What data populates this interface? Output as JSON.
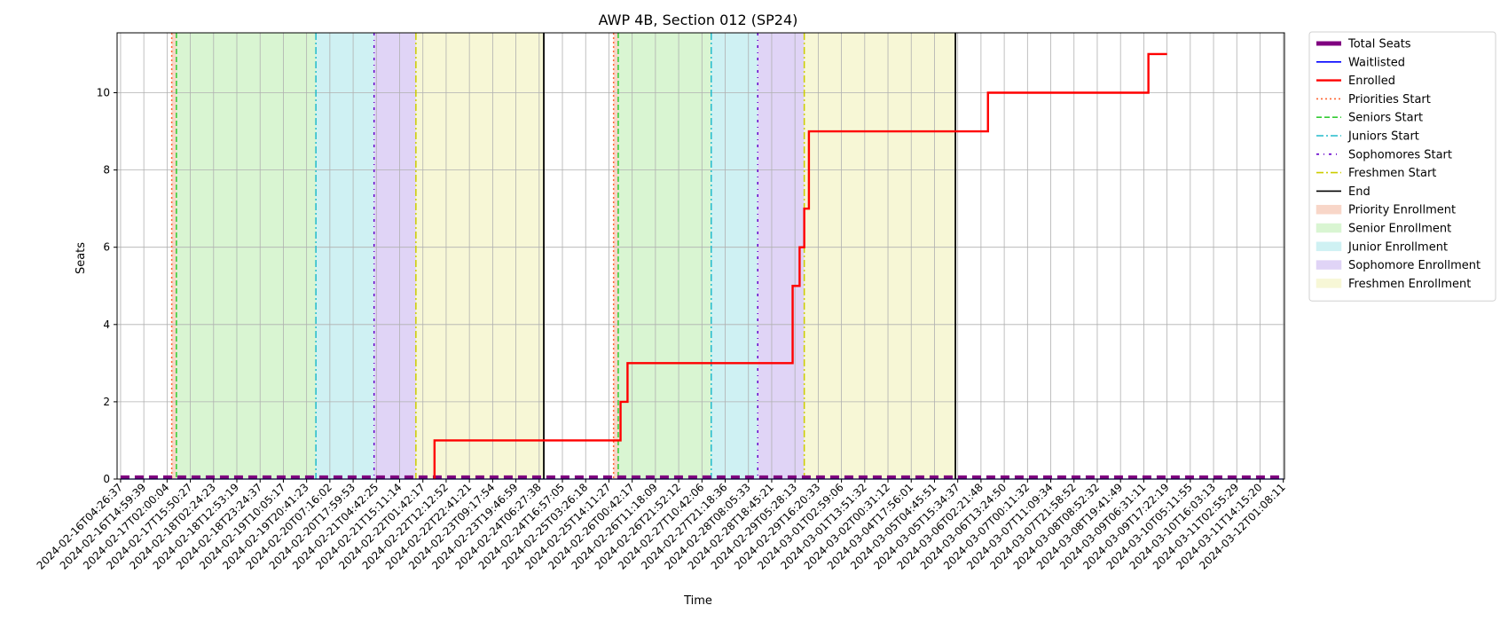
{
  "chart_data": {
    "type": "line",
    "title": "AWP 4B, Section 012 (SP24)",
    "xlabel": "Time",
    "ylabel": "Seats",
    "ylim": [
      0,
      11.55
    ],
    "yticks": [
      0,
      2,
      4,
      6,
      8,
      10
    ],
    "grid": true,
    "legend_position": "outside right, top",
    "x_tick_labels": [
      "2024-02-16T04:26:37",
      "2024-02-16T14:59:39",
      "2024-02-17T02:00:04",
      "2024-02-17T15:50:27",
      "2024-02-18T02:24:23",
      "2024-02-18T12:53:19",
      "2024-02-18T23:24:37",
      "2024-02-19T10:05:17",
      "2024-02-19T20:41:23",
      "2024-02-20T07:16:02",
      "2024-02-20T17:59:53",
      "2024-02-21T04:42:25",
      "2024-02-21T15:11:14",
      "2024-02-22T01:42:17",
      "2024-02-22T12:12:52",
      "2024-02-22T22:41:21",
      "2024-02-23T09:17:54",
      "2024-02-23T19:46:59",
      "2024-02-24T06:27:38",
      "2024-02-24T16:57:05",
      "2024-02-25T03:26:18",
      "2024-02-25T14:11:27",
      "2024-02-26T00:42:17",
      "2024-02-26T11:18:09",
      "2024-02-26T21:52:12",
      "2024-02-27T10:42:06",
      "2024-02-27T21:18:36",
      "2024-02-28T08:05:33",
      "2024-02-28T18:45:21",
      "2024-02-29T05:28:13",
      "2024-02-29T16:20:33",
      "2024-03-01T02:59:06",
      "2024-03-01T13:51:32",
      "2024-03-02T00:31:12",
      "2024-03-04T17:56:01",
      "2024-03-05T04:45:51",
      "2024-03-05T15:34:37",
      "2024-03-06T02:21:48",
      "2024-03-06T13:24:50",
      "2024-03-07T00:11:32",
      "2024-03-07T11:09:34",
      "2024-03-07T21:58:52",
      "2024-03-08T08:52:32",
      "2024-03-08T19:41:49",
      "2024-03-09T06:31:11",
      "2024-03-09T17:22:19",
      "2024-03-10T05:11:55",
      "2024-03-10T16:03:13",
      "2024-03-11T02:55:29",
      "2024-03-11T14:15:20",
      "2024-03-12T01:08:11"
    ],
    "series": [
      {
        "name": "Total Seats",
        "color": "#800080",
        "style": "dashed-thick",
        "points": [
          [
            0,
            0.05
          ],
          [
            50,
            0.05
          ]
        ]
      },
      {
        "name": "Waitlisted",
        "color": "#0000ff",
        "style": "solid-thin",
        "points": [
          [
            0,
            0
          ],
          [
            50,
            0
          ]
        ]
      },
      {
        "name": "Enrolled",
        "color": "#ff0000",
        "style": "solid-thick",
        "points": [
          [
            13.5,
            0
          ],
          [
            13.5,
            1
          ],
          [
            21.5,
            1
          ],
          [
            21.5,
            2
          ],
          [
            21.8,
            2
          ],
          [
            21.8,
            3
          ],
          [
            28.9,
            3
          ],
          [
            28.9,
            5
          ],
          [
            29.2,
            5
          ],
          [
            29.2,
            6
          ],
          [
            29.4,
            6
          ],
          [
            29.4,
            7
          ],
          [
            29.6,
            7
          ],
          [
            29.6,
            9
          ],
          [
            37.3,
            9
          ],
          [
            37.3,
            10
          ],
          [
            44.2,
            10
          ],
          [
            44.2,
            11
          ],
          [
            45.0,
            11
          ]
        ]
      }
    ],
    "vertical_lines": [
      {
        "name": "Priorities Start",
        "color": "#ff6633",
        "style": "dotted",
        "x": [
          2.2,
          21.2
        ]
      },
      {
        "name": "Seniors Start",
        "color": "#33cc33",
        "style": "dashed",
        "x": [
          2.4,
          21.4
        ]
      },
      {
        "name": "Juniors Start",
        "color": "#22bbcc",
        "style": "dashdot",
        "x": [
          8.4,
          25.4
        ]
      },
      {
        "name": "Sophomores Start",
        "color": "#6600cc",
        "style": "dashdot-dense",
        "x": [
          10.9,
          27.4
        ]
      },
      {
        "name": "Freshmen Start",
        "color": "#cccc00",
        "style": "dashdot",
        "x": [
          12.7,
          29.4
        ]
      },
      {
        "name": "End",
        "color": "#000000",
        "style": "solid",
        "x": [
          18.2,
          35.9
        ]
      }
    ],
    "shaded_regions": [
      {
        "name": "Priority Enrollment",
        "color": "#f8d6c8",
        "spans": [
          [
            2.2,
            2.4
          ],
          [
            21.2,
            21.4
          ]
        ]
      },
      {
        "name": "Senior Enrollment",
        "color": "#d9f5d2",
        "spans": [
          [
            2.4,
            8.4
          ],
          [
            21.4,
            25.4
          ]
        ]
      },
      {
        "name": "Junior Enrollment",
        "color": "#cff1f3",
        "spans": [
          [
            8.4,
            10.9
          ],
          [
            25.4,
            27.4
          ]
        ]
      },
      {
        "name": "Sophomore Enrollment",
        "color": "#e0d4f6",
        "spans": [
          [
            10.9,
            12.7
          ],
          [
            27.4,
            29.4
          ]
        ]
      },
      {
        "name": "Freshmen Enrollment",
        "color": "#f7f7d6",
        "spans": [
          [
            12.7,
            18.2
          ],
          [
            29.4,
            35.9
          ]
        ]
      }
    ]
  }
}
